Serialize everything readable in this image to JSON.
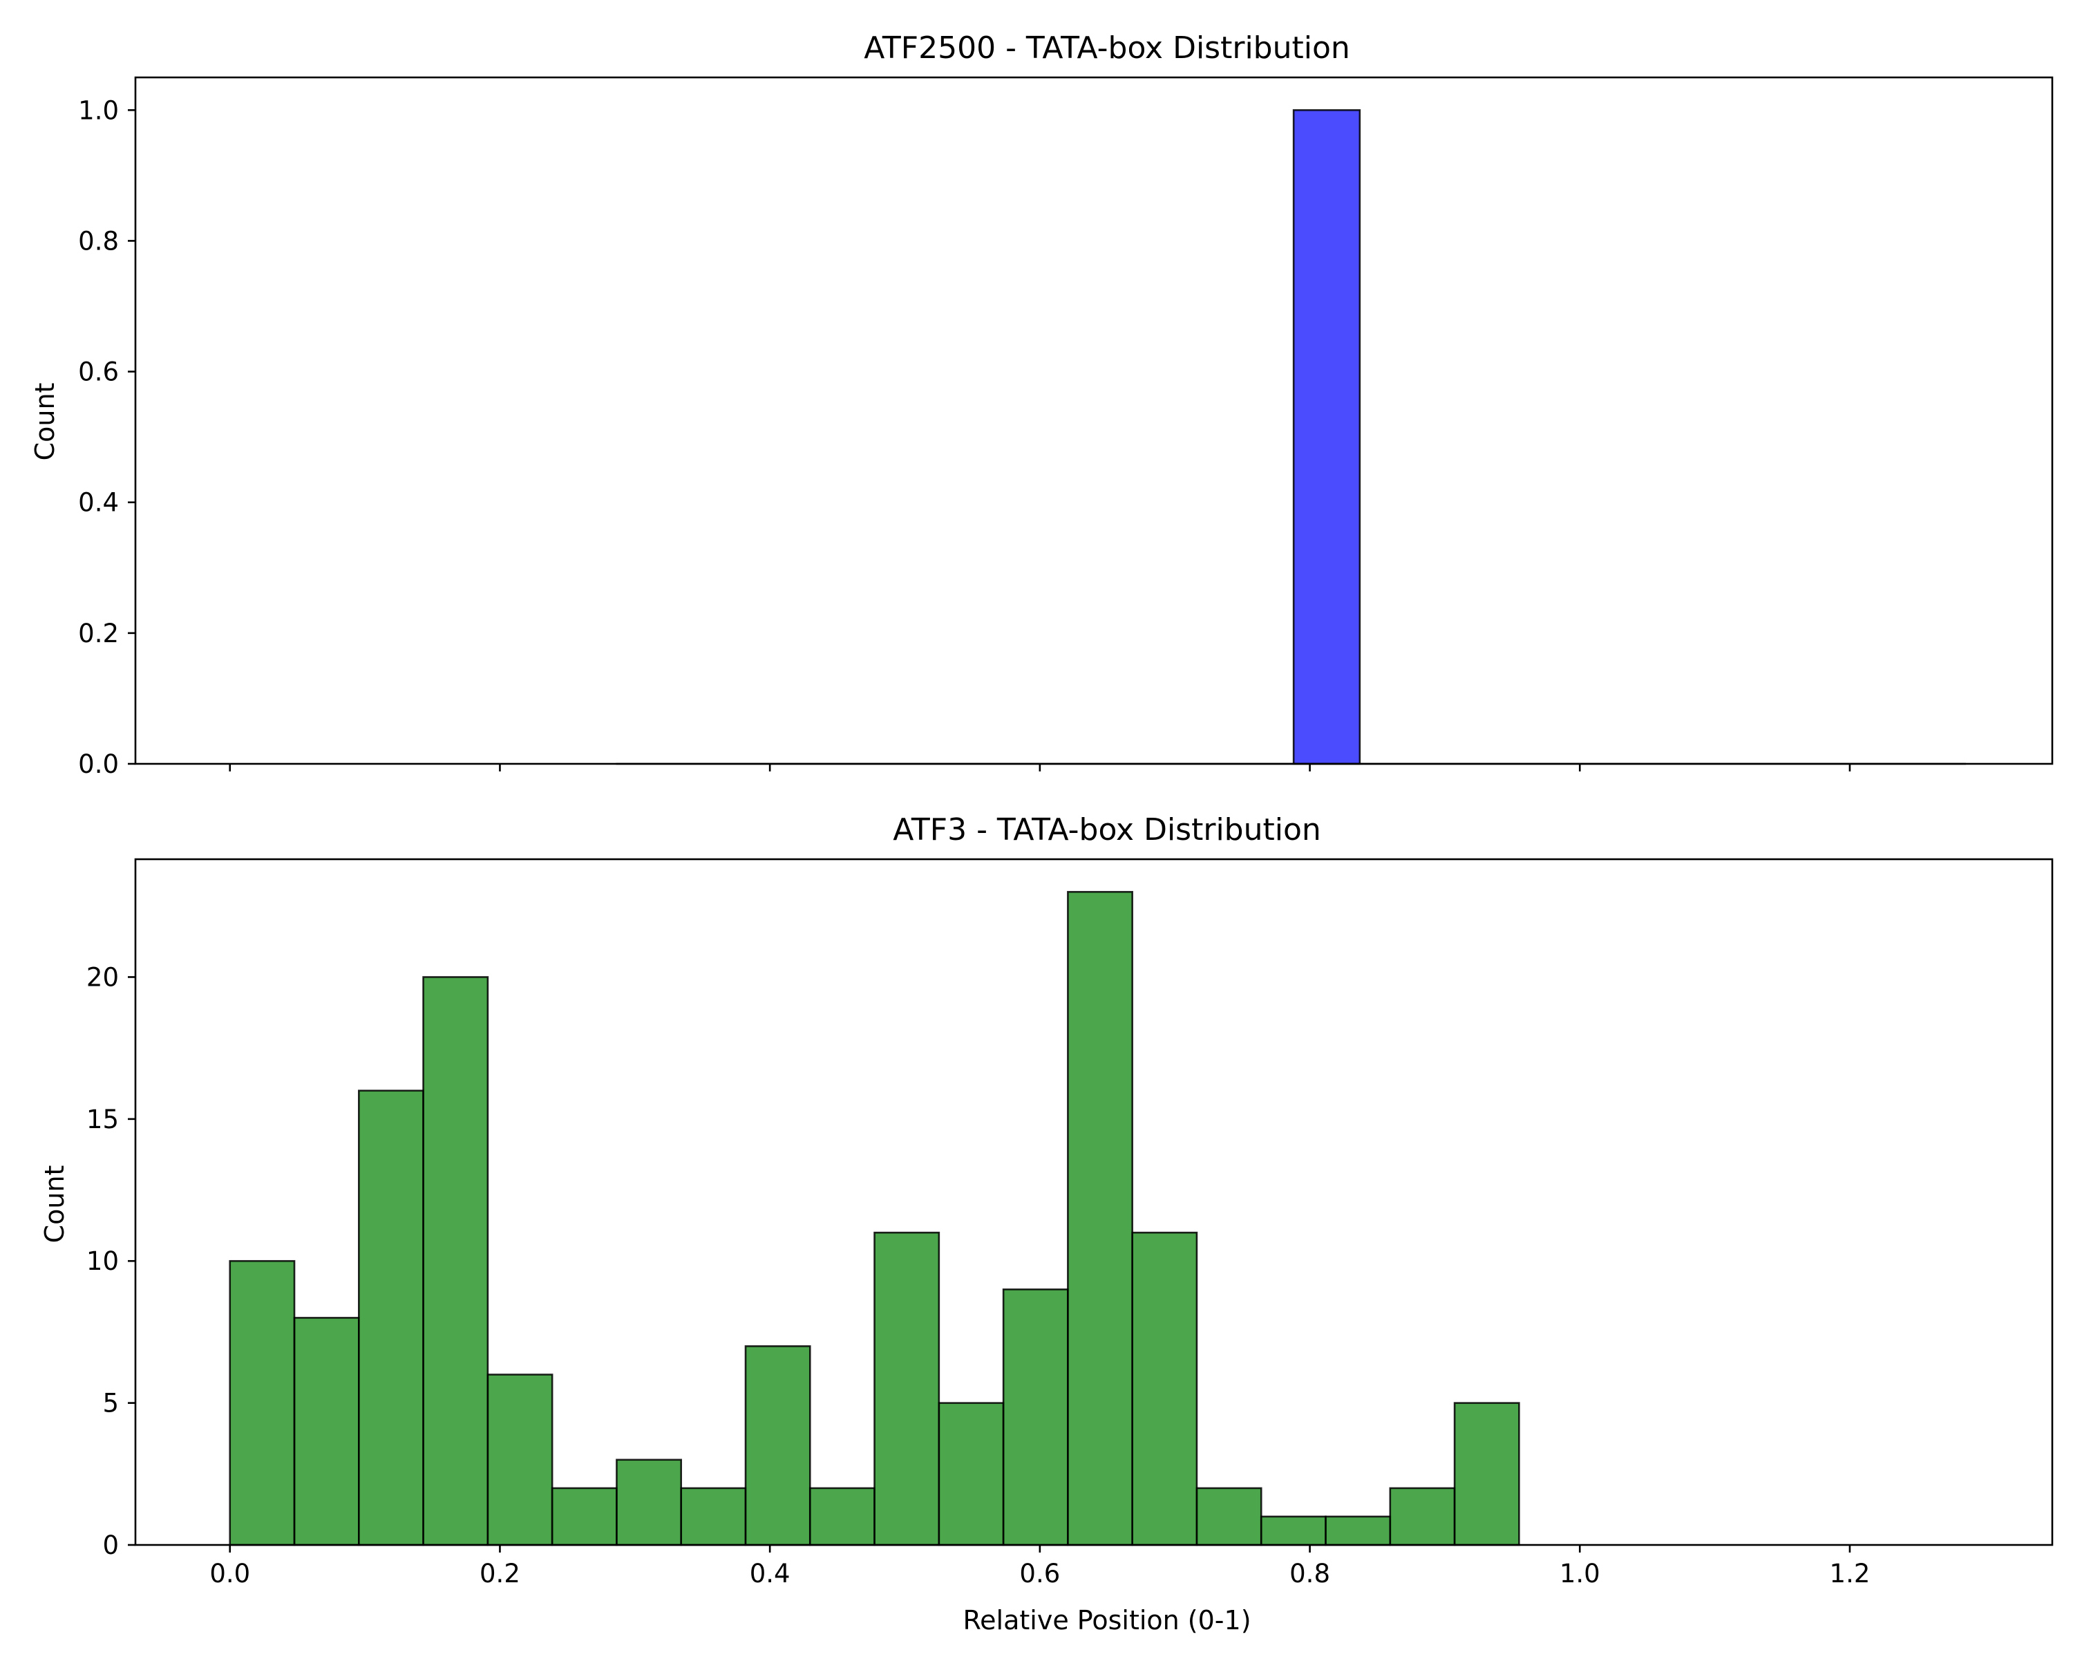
{
  "chart_data": [
    {
      "type": "bar",
      "title": "ATF2500 - TATA-box Distribution",
      "xlabel": "",
      "ylabel": "Count",
      "xlim": [
        -0.07,
        1.35
      ],
      "ylim": [
        0,
        1.05
      ],
      "grid": false,
      "bar_color": "#0000ff",
      "bar_opacity": 0.7,
      "x_ticks": [
        "0.0",
        "0.2",
        "0.4",
        "0.6",
        "0.8",
        "1.0",
        "1.2"
      ],
      "x_tick_values": [
        0.0,
        0.2,
        0.4,
        0.6,
        0.8,
        1.0,
        1.2
      ],
      "x_ticklabels_visible": false,
      "y_ticks": [
        "0.0",
        "0.2",
        "0.4",
        "0.6",
        "0.8",
        "1.0"
      ],
      "y_tick_values": [
        0.0,
        0.2,
        0.4,
        0.6,
        0.8,
        1.0
      ],
      "bins": [
        {
          "x0": 0.788,
          "x1": 0.837,
          "count": 1
        }
      ],
      "zero_baseline": [
        0.286,
        1.286
      ]
    },
    {
      "type": "bar",
      "title": "ATF3 - TATA-box Distribution",
      "xlabel": "Relative Position (0-1)",
      "ylabel": "Count",
      "xlim": [
        -0.07,
        1.35
      ],
      "ylim": [
        0,
        24.15
      ],
      "grid": false,
      "bar_color": "#008000",
      "bar_opacity": 0.7,
      "x_ticks": [
        "0.0",
        "0.2",
        "0.4",
        "0.6",
        "0.8",
        "1.0",
        "1.2"
      ],
      "x_tick_values": [
        0.0,
        0.2,
        0.4,
        0.6,
        0.8,
        1.0,
        1.2
      ],
      "x_ticklabels_visible": true,
      "y_ticks": [
        "0",
        "5",
        "10",
        "15",
        "20"
      ],
      "y_tick_values": [
        0,
        5,
        10,
        15,
        20
      ],
      "bin_start": 0.0,
      "bin_width": 0.04775,
      "counts": [
        10,
        8,
        16,
        20,
        6,
        2,
        3,
        2,
        7,
        2,
        11,
        5,
        9,
        23,
        11,
        2,
        1,
        1,
        2,
        5
      ]
    }
  ]
}
